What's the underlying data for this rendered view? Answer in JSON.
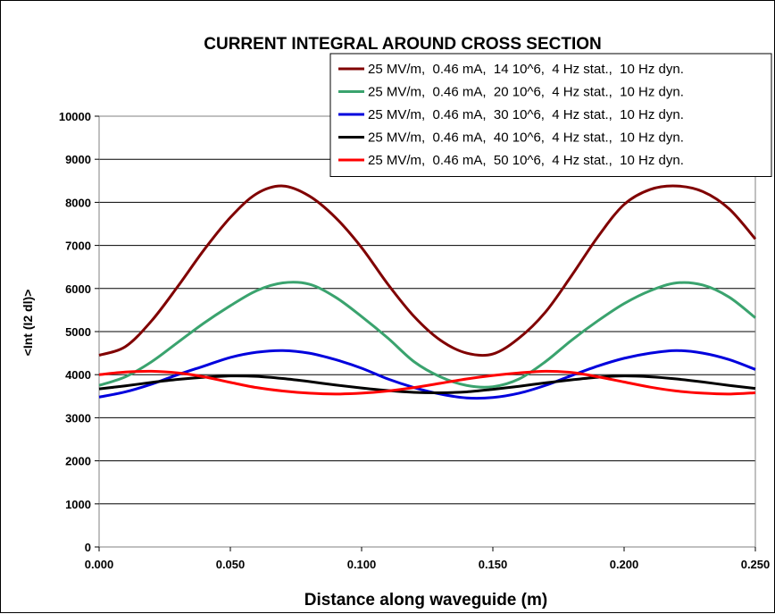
{
  "chart_data": {
    "type": "line",
    "title": "CURRENT INTEGRAL AROUND CROSS SECTION",
    "xlabel": "Distance along waveguide (m)",
    "ylabel": "<Int (I2 dl)>",
    "xlim": [
      0,
      0.25
    ],
    "ylim": [
      0,
      10000
    ],
    "x_ticks": [
      "0.000",
      "0.050",
      "0.100",
      "0.150",
      "0.200",
      "0.250"
    ],
    "y_ticks": [
      "0",
      "1000",
      "2000",
      "3000",
      "4000",
      "5000",
      "6000",
      "7000",
      "8000",
      "9000",
      "10000"
    ],
    "grid": "horizontal",
    "legend_position": "top-right",
    "x": [
      0.0,
      0.01,
      0.02,
      0.03,
      0.04,
      0.05,
      0.06,
      0.07,
      0.08,
      0.09,
      0.1,
      0.11,
      0.12,
      0.13,
      0.14,
      0.15,
      0.16,
      0.17,
      0.18,
      0.19,
      0.2,
      0.21,
      0.22,
      0.23,
      0.24,
      0.25
    ],
    "series": [
      {
        "name": "25 MV/m,  0.46 mA,  14 10^6,  4 Hz stat.,  10 Hz dyn.",
        "color": "#800000",
        "values": [
          4450,
          4650,
          5250,
          6050,
          6900,
          7650,
          8200,
          8380,
          8150,
          7650,
          6950,
          6100,
          5350,
          4800,
          4500,
          4480,
          4850,
          5450,
          6300,
          7200,
          7950,
          8300,
          8380,
          8250,
          7850,
          7150
        ]
      },
      {
        "name": "25 MV/m,  0.46 mA,  20 10^6,  4 Hz stat.,  10 Hz dyn.",
        "color": "#3aa36e",
        "values": [
          3750,
          3950,
          4300,
          4750,
          5200,
          5600,
          5950,
          6130,
          6100,
          5800,
          5350,
          4850,
          4300,
          3950,
          3750,
          3720,
          3900,
          4300,
          4800,
          5250,
          5650,
          5950,
          6130,
          6080,
          5800,
          5320
        ]
      },
      {
        "name": "25 MV/m,  0.46 mA,  30 10^6,  4 Hz stat.,  10 Hz dyn.",
        "color": "#0000dd",
        "values": [
          3480,
          3600,
          3780,
          4000,
          4200,
          4400,
          4520,
          4560,
          4500,
          4350,
          4150,
          3900,
          3700,
          3550,
          3460,
          3470,
          3570,
          3750,
          3980,
          4200,
          4380,
          4500,
          4560,
          4500,
          4350,
          4120
        ]
      },
      {
        "name": "25 MV/m,  0.46 mA,  40 10^6,  4 Hz stat.,  10 Hz dyn.",
        "color": "#000000",
        "values": [
          3670,
          3740,
          3820,
          3890,
          3940,
          3970,
          3960,
          3910,
          3840,
          3760,
          3690,
          3630,
          3590,
          3580,
          3600,
          3660,
          3730,
          3810,
          3880,
          3940,
          3970,
          3950,
          3900,
          3830,
          3750,
          3680
        ]
      },
      {
        "name": "25 MV/m,  0.46 mA,  50 10^6,  4 Hz stat.,  10 Hz dyn.",
        "color": "#ff0000",
        "values": [
          4000,
          4060,
          4080,
          4040,
          3950,
          3820,
          3700,
          3620,
          3570,
          3550,
          3570,
          3620,
          3700,
          3800,
          3900,
          3980,
          4040,
          4080,
          4050,
          3950,
          3830,
          3710,
          3620,
          3570,
          3550,
          3580
        ]
      }
    ]
  }
}
